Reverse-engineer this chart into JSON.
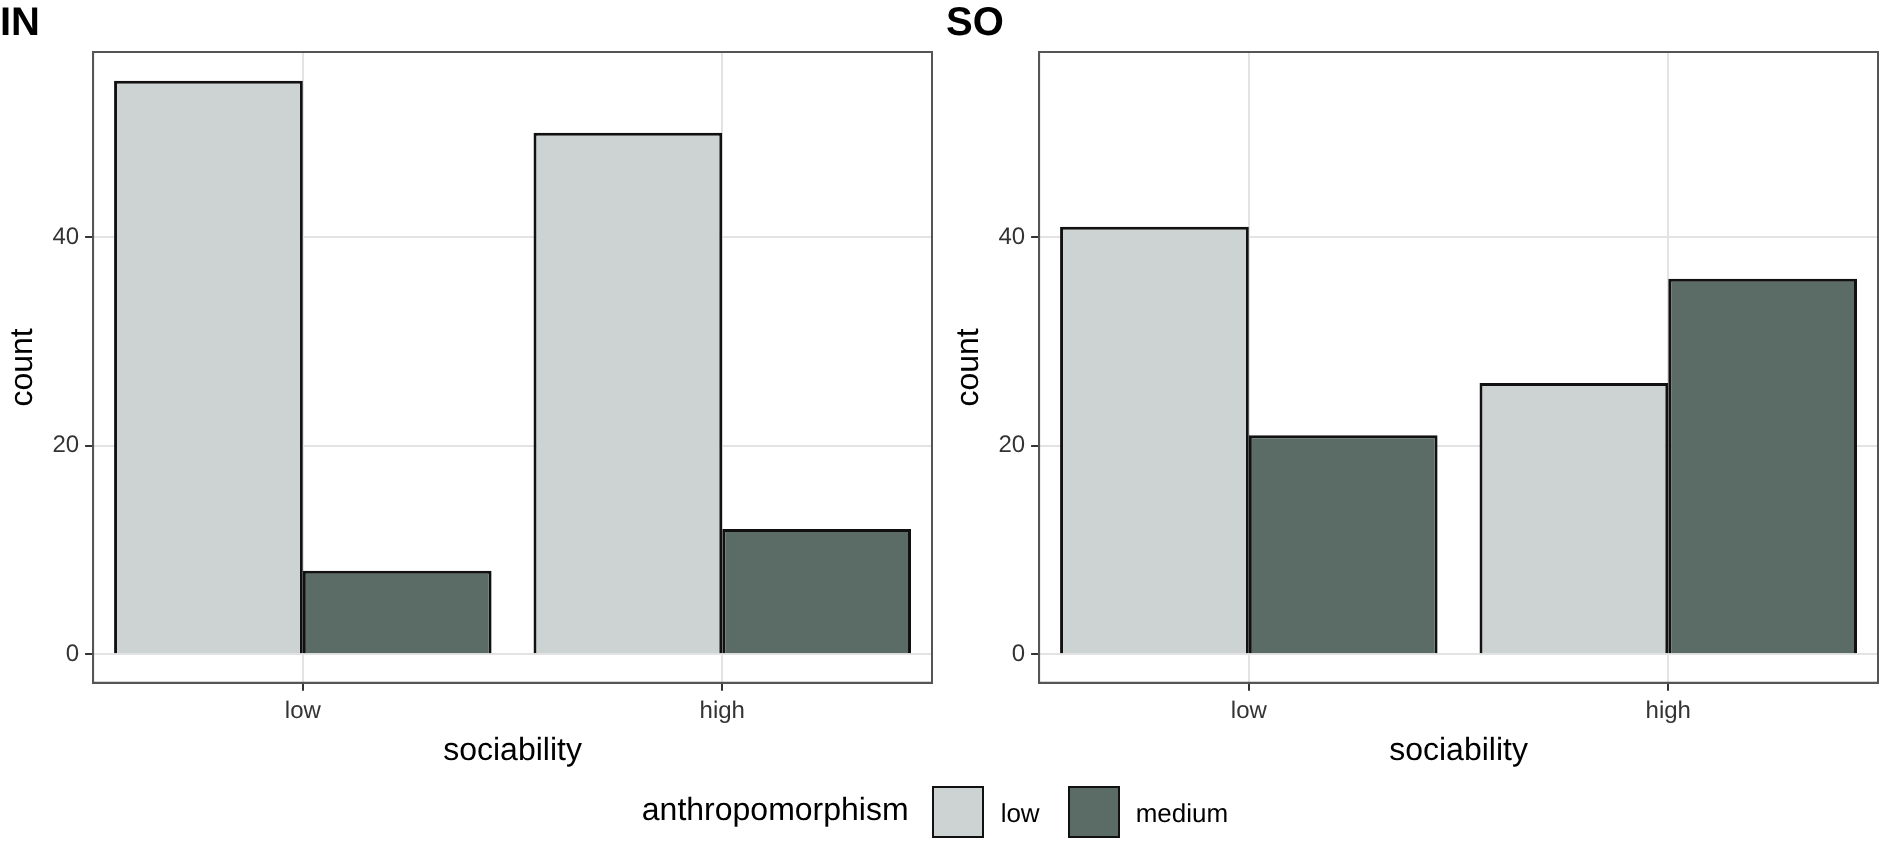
{
  "chart_data": [
    {
      "type": "bar",
      "title": "IN",
      "xlabel": "sociability",
      "ylabel": "count",
      "legend_title": "anthropomorphism",
      "legend": "bottom",
      "grid": true,
      "categories": [
        "low",
        "high"
      ],
      "series": [
        {
          "name": "low",
          "color": "#cdd3d3",
          "values": [
            55,
            50
          ]
        },
        {
          "name": "medium",
          "color": "#5b6b66",
          "values": [
            8,
            12
          ]
        }
      ],
      "ylim": [
        -2.75,
        57.75
      ],
      "yticks": [
        0,
        20,
        40
      ]
    },
    {
      "type": "bar",
      "title": "SO",
      "xlabel": "sociability",
      "ylabel": "count",
      "grid": true,
      "categories": [
        "low",
        "high"
      ],
      "series": [
        {
          "color": "#cdd3d3",
          "values": [
            41,
            26
          ]
        },
        {
          "color": "#5b6b66",
          "values": [
            21,
            36
          ]
        }
      ],
      "ylim": [
        -2.75,
        57.75
      ],
      "yticks": [
        0,
        20,
        40
      ]
    }
  ]
}
